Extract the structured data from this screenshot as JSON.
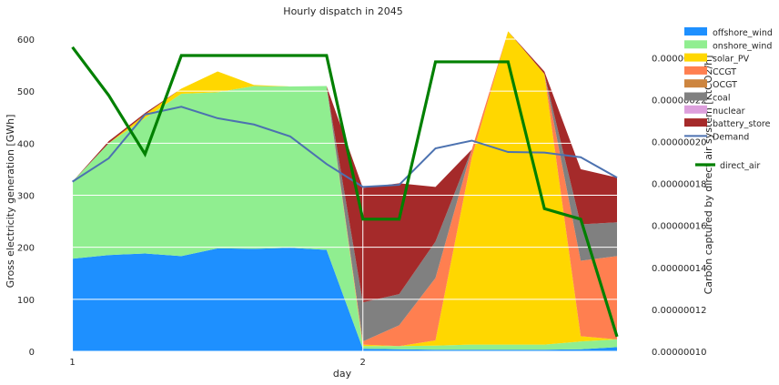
{
  "chart_data": {
    "type": "area",
    "title": "Hourly dispatch in 2045",
    "xlabel": "day",
    "ylabel": "Gross electricity generation [GWh]",
    "y2label": "Carbon captured by direct air system [KtCO2/h]",
    "x": [
      1.0,
      1.125,
      1.25,
      1.375,
      1.5,
      1.625,
      1.75,
      1.875,
      2.0,
      2.125,
      2.25,
      2.375,
      2.5,
      2.625,
      2.75,
      2.875
    ],
    "x_ticks": [
      {
        "value": 1,
        "label": "1"
      },
      {
        "value": 2,
        "label": "2"
      }
    ],
    "xlim": [
      0.97,
      2.875
    ],
    "ylim": [
      0,
      635
    ],
    "y_ticks": [
      {
        "value": 0,
        "label": "0"
      },
      {
        "value": 100,
        "label": "100"
      },
      {
        "value": 200,
        "label": "200"
      },
      {
        "value": 300,
        "label": "300"
      },
      {
        "value": 400,
        "label": "400"
      },
      {
        "value": 500,
        "label": "500"
      },
      {
        "value": 600,
        "label": "600"
      }
    ],
    "y2lim": [
      1e-07,
      2.575e-07
    ],
    "y2_ticks": [
      {
        "value": 1e-07,
        "label": "0.00000010"
      },
      {
        "value": 1.2e-07,
        "label": "0.00000012"
      },
      {
        "value": 1.4e-07,
        "label": "0.00000014"
      },
      {
        "value": 1.6e-07,
        "label": "0.00000016"
      },
      {
        "value": 1.8e-07,
        "label": "0.00000018"
      },
      {
        "value": 2e-07,
        "label": "0.00000020"
      },
      {
        "value": 2.2e-07,
        "label": "0.00000022"
      },
      {
        "value": 2.4e-07,
        "label": "0.00000024"
      }
    ],
    "grid": true,
    "legend_position": "right",
    "series": [
      {
        "name": "offshore_wind",
        "color": "#1e90ff",
        "values": [
          178,
          185,
          188,
          183,
          198,
          197,
          199,
          195,
          5,
          4,
          3,
          3,
          3,
          3,
          4,
          8
        ]
      },
      {
        "name": "onshore_wind",
        "color": "#90ee90",
        "values": [
          148,
          215,
          260,
          312,
          300,
          313,
          310,
          315,
          5,
          6,
          8,
          10,
          10,
          10,
          15,
          15
        ]
      },
      {
        "name": "solar_PV",
        "color": "#ffd700",
        "values": [
          0,
          0,
          7,
          10,
          40,
          2,
          0,
          0,
          3,
          0,
          10,
          360,
          602,
          520,
          10,
          0
        ]
      },
      {
        "name": "CCGT",
        "color": "#ff7f50",
        "values": [
          0,
          0,
          0,
          0,
          0,
          0,
          0,
          0,
          6,
          40,
          120,
          15,
          0,
          0,
          145,
          160
        ]
      },
      {
        "name": "OCGT",
        "color": "#cd853f",
        "values": [
          0,
          0,
          0,
          0,
          0,
          0,
          0,
          0,
          0,
          0,
          0,
          0,
          0,
          0,
          0,
          0
        ]
      },
      {
        "name": "coal",
        "color": "#808080",
        "values": [
          0,
          0,
          0,
          0,
          0,
          0,
          0,
          0,
          75,
          60,
          70,
          0,
          0,
          0,
          70,
          65
        ]
      },
      {
        "name": "nuclear",
        "color": "#dda0dd",
        "values": [
          0,
          0,
          0,
          0,
          0,
          0,
          0,
          0,
          0,
          0,
          0,
          0,
          0,
          0,
          0,
          0
        ]
      },
      {
        "name": "battery_store",
        "color": "#a52a2a",
        "values": [
          0,
          4,
          3,
          0,
          0,
          0,
          0,
          0,
          220,
          213,
          105,
          0,
          0,
          5,
          106,
          86
        ]
      }
    ],
    "demand": {
      "name": "Demand",
      "color": "#4c72b0",
      "values": [
        326,
        371,
        455,
        470,
        448,
        436,
        413,
        360,
        316,
        320,
        390,
        405,
        383,
        382,
        373,
        334
      ]
    },
    "secondary_series": {
      "name": "direct_air",
      "color": "#008000",
      "values": [
        2.45e-07,
        2.22e-07,
        1.94e-07,
        2.41e-07,
        2.41e-07,
        2.41e-07,
        2.41e-07,
        2.41e-07,
        1.63e-07,
        1.63e-07,
        2.38e-07,
        2.38e-07,
        2.38e-07,
        1.68e-07,
        1.63e-07,
        1.07e-07
      ]
    }
  }
}
